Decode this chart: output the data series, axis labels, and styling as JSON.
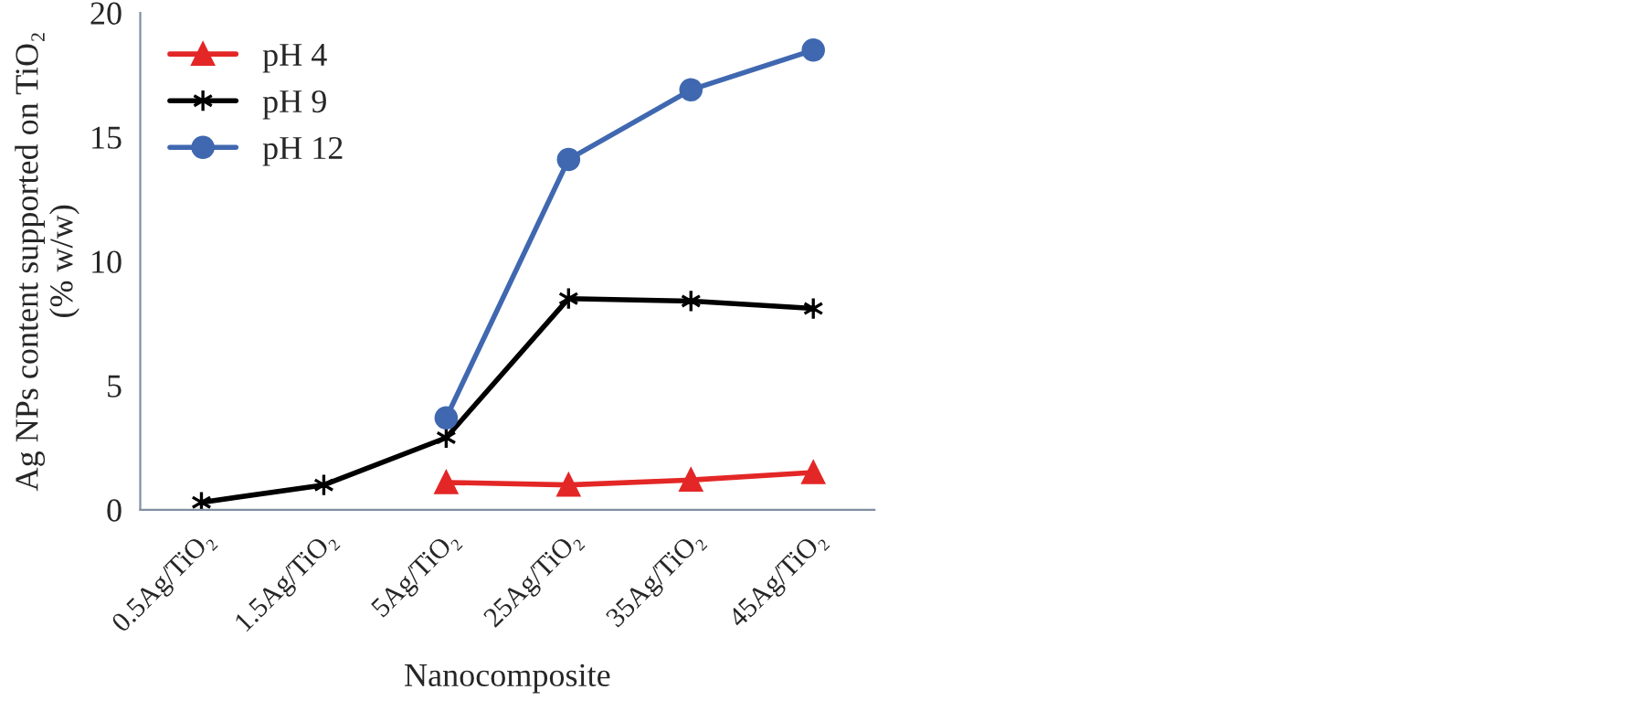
{
  "chart_data": {
    "type": "line",
    "xlabel": "Nanocomposite",
    "ylabel": "Ag NPs content supported on TiO₂\n(% w/w)",
    "categories": [
      "0.5Ag/TiO₂",
      "1.5Ag/TiO₂",
      "5Ag/TiO₂",
      "25Ag/TiO₂",
      "35Ag/TiO₂",
      "45Ag/TiO₂"
    ],
    "series": [
      {
        "name": "pH 4",
        "color": "#e32726",
        "marker": "triangle",
        "values": [
          null,
          null,
          1.1,
          1.0,
          1.2,
          1.5
        ]
      },
      {
        "name": "pH 9",
        "color": "#000000",
        "marker": "cross",
        "values": [
          0.3,
          1.0,
          2.9,
          8.5,
          8.4,
          8.1
        ]
      },
      {
        "name": "pH 12",
        "color": "#4068b0",
        "marker": "circle",
        "values": [
          null,
          null,
          3.7,
          14.1,
          16.9,
          18.5
        ]
      }
    ],
    "ylim": [
      0,
      20
    ],
    "yticks": [
      0,
      5,
      10,
      15,
      20
    ],
    "grid": false,
    "legend": "top left"
  }
}
